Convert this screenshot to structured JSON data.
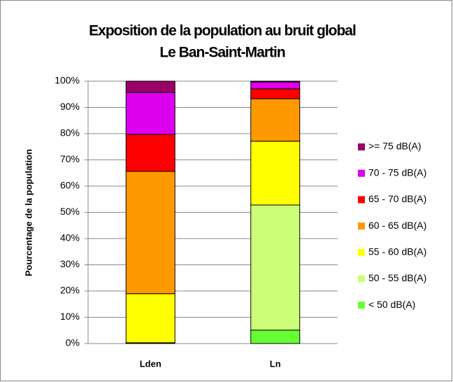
{
  "chart_data": {
    "type": "stacked_bar",
    "title": [
      "Exposition de la population au bruit global",
      "Le Ban-Saint-Martin"
    ],
    "y_label": "Pourcentage de la population",
    "categories": [
      "Lden",
      "Ln"
    ],
    "series": [
      {
        "name": "< 50 dB(A)",
        "color": "#66ff33",
        "values": [
          0,
          5.1
        ]
      },
      {
        "name": "50 - 55 dB(A)",
        "color": "#ccff77",
        "values": [
          0.3,
          47.7
        ]
      },
      {
        "name": "55 - 60 dB(A)",
        "color": "#ffff00",
        "values": [
          18.7,
          24.3
        ]
      },
      {
        "name": "60 - 65 dB(A)",
        "color": "#ff9900",
        "values": [
          46.6,
          16.2
        ]
      },
      {
        "name": "65 - 70 dB(A)",
        "color": "#ff0000",
        "values": [
          14.1,
          3.8
        ]
      },
      {
        "name": "70 - 75 dB(A)",
        "color": "#dd00ee",
        "values": [
          16.0,
          2.6
        ]
      },
      {
        "name": ">= 75 dB(A)",
        "color": "#990066",
        "values": [
          4.3,
          0.3
        ]
      }
    ],
    "ylim": [
      0,
      100
    ],
    "yticks": [
      {
        "value": 0,
        "label": "0%"
      },
      {
        "value": 10,
        "label": "10%"
      },
      {
        "value": 20,
        "label": "20%"
      },
      {
        "value": 30,
        "label": "30%"
      },
      {
        "value": 40,
        "label": "40%"
      },
      {
        "value": 50,
        "label": "50%"
      },
      {
        "value": 60,
        "label": "60%"
      },
      {
        "value": 70,
        "label": "70%"
      },
      {
        "value": 80,
        "label": "80%"
      },
      {
        "value": 90,
        "label": "90%"
      },
      {
        "value": 100,
        "label": "100%"
      }
    ],
    "grid": true,
    "legend": "right"
  }
}
